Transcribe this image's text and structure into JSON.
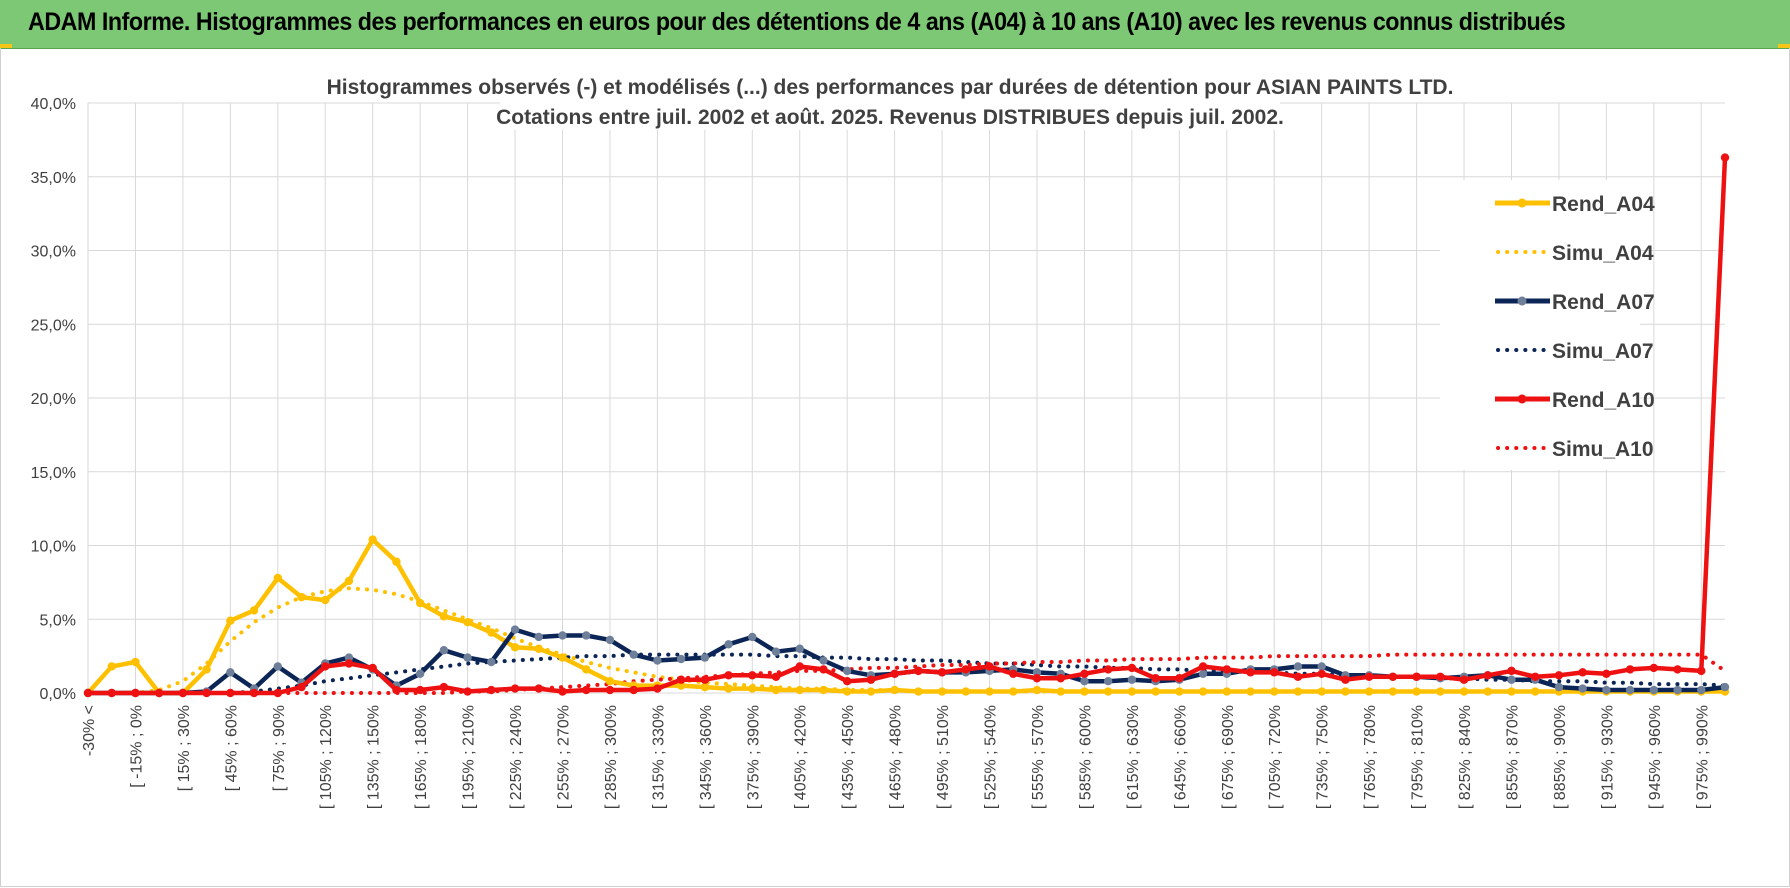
{
  "header": {
    "title": "ADAM Informe. Histogrammes des performances en euros pour des détentions de 4 ans (A04) à 10 ans (A10) avec les revenus connus distribués"
  },
  "colors": {
    "banner": "#7dc874",
    "A04": "#ffc000",
    "A07": "#0c2557",
    "A07_marker": "#6d7f99",
    "A10": "#ee1111",
    "grid": "#d9d9d9"
  },
  "chart_data": {
    "type": "line",
    "title_lines": [
      "Histogrammes observés (-) et modélisés (...) des performances par durées de détention pour ASIAN PAINTS LTD.",
      "Cotations entre juil. 2002 et août. 2025. Revenus DISTRIBUES depuis juil. 2002."
    ],
    "y_ticks": [
      "0,0%",
      "5,0%",
      "10,0%",
      "15,0%",
      "20,0%",
      "25,0%",
      "30,0%",
      "35,0%",
      "40,0%"
    ],
    "ylim": [
      0,
      40
    ],
    "y_unit": "%",
    "grid": true,
    "legend_position": "right",
    "x_tick_labels": [
      "-30% <",
      "[ -15% ; 0%",
      "[ 15% ; 30%",
      "[ 45% ; 60%",
      "[ 75% ; 90%",
      "[ 105% ; 120%",
      "[ 135% ; 150%",
      "[ 165% ; 180%",
      "[ 195% ; 210%",
      "[ 225% ; 240%",
      "[ 255% ; 270%",
      "[ 285% ; 300%",
      "[ 315% ; 330%",
      "[ 345% ; 360%",
      "[ 375% ; 390%",
      "[ 405% ; 420%",
      "[ 435% ; 450%",
      "[ 465% ; 480%",
      "[ 495% ; 510%",
      "[ 525% ; 540%",
      "[ 555% ; 570%",
      "[ 585% ; 600%",
      "[ 615% ; 630%",
      "[ 645% ; 660%",
      "[ 675% ; 690%",
      "[ 705% ; 720%",
      "[ 735% ; 750%",
      "[ 765% ; 780%",
      "[ 795% ; 810%",
      "[ 825% ; 840%",
      "[ 855% ; 870%",
      "[ 885% ; 900%",
      "[ 915% ; 930%",
      "[ 945% ; 960%",
      "[ 975% ; 990%"
    ],
    "series": [
      {
        "name": "Rend_A04",
        "style": "solid",
        "color": "#ffc000",
        "values": [
          0,
          1.8,
          2.1,
          0,
          0,
          1.6,
          4.9,
          5.6,
          7.8,
          6.5,
          6.3,
          7.6,
          10.4,
          8.9,
          6.1,
          5.2,
          4.8,
          4.1,
          3.1,
          3.0,
          2.4,
          1.6,
          0.8,
          0.5,
          0.5,
          0.5,
          0.4,
          0.3,
          0.3,
          0.2,
          0.2,
          0.2,
          0.1,
          0.1,
          0.2,
          0.1,
          0.1,
          0.1,
          0.1,
          0.1,
          0.2,
          0.1,
          0.1,
          0.1,
          0.1,
          0.1,
          0.1,
          0.1,
          0.1,
          0.1,
          0.1,
          0.1,
          0.1,
          0.1,
          0.1,
          0.1,
          0.1,
          0.1,
          0.1,
          0.1,
          0.1,
          0.1,
          0.1,
          0.1,
          0.1,
          0.1,
          0.1,
          0.1,
          0.1,
          0.1
        ]
      },
      {
        "name": "Simu_A04",
        "style": "dotted",
        "color": "#ffc000",
        "values": [
          0,
          0,
          0,
          0.2,
          0.8,
          2.0,
          3.5,
          4.8,
          5.8,
          6.5,
          6.9,
          7.1,
          7.0,
          6.7,
          6.2,
          5.6,
          5.0,
          4.4,
          3.7,
          3.1,
          2.6,
          2.1,
          1.7,
          1.4,
          1.1,
          0.9,
          0.7,
          0.6,
          0.5,
          0.4,
          0.3,
          0.3,
          0.2,
          0.2,
          0.2,
          0.1,
          0.1,
          0.1,
          0.1,
          0.1,
          0.1,
          0.1,
          0.1,
          0.1,
          0.1,
          0.1,
          0.1,
          0.1,
          0.1,
          0.1,
          0.1,
          0.1,
          0.1,
          0.1,
          0.1,
          0.1,
          0.1,
          0.1,
          0.1,
          0.1,
          0.1,
          0.1,
          0.1,
          0.1,
          0.1,
          0.1,
          0.1,
          0.1,
          0.1,
          0.1
        ]
      },
      {
        "name": "Rend_A07",
        "style": "solid",
        "color": "#0c2557",
        "values": [
          0,
          0,
          0,
          0,
          0,
          0.1,
          1.4,
          0.3,
          1.8,
          0.7,
          2.0,
          2.4,
          1.6,
          0.5,
          1.3,
          2.9,
          2.4,
          2.1,
          4.3,
          3.8,
          3.9,
          3.9,
          3.6,
          2.6,
          2.2,
          2.3,
          2.4,
          3.3,
          3.8,
          2.8,
          3.0,
          2.2,
          1.5,
          1.2,
          1.3,
          1.5,
          1.4,
          1.4,
          1.5,
          1.6,
          1.4,
          1.3,
          0.8,
          0.8,
          0.9,
          0.8,
          0.9,
          1.3,
          1.3,
          1.6,
          1.6,
          1.8,
          1.8,
          1.2,
          1.2,
          1.1,
          1.1,
          1.0,
          1.1,
          1.2,
          0.9,
          0.9,
          0.4,
          0.3,
          0.2,
          0.2,
          0.2,
          0.2,
          0.2,
          0.4
        ]
      },
      {
        "name": "Simu_A07",
        "style": "dotted",
        "color": "#0c2557",
        "values": [
          0,
          0,
          0,
          0,
          0,
          0,
          0,
          0.1,
          0.3,
          0.5,
          0.8,
          1.0,
          1.2,
          1.4,
          1.6,
          1.8,
          2.0,
          2.1,
          2.2,
          2.3,
          2.4,
          2.5,
          2.5,
          2.6,
          2.6,
          2.6,
          2.6,
          2.6,
          2.6,
          2.5,
          2.5,
          2.4,
          2.4,
          2.3,
          2.3,
          2.2,
          2.2,
          2.1,
          2.0,
          2.0,
          1.9,
          1.8,
          1.8,
          1.7,
          1.7,
          1.6,
          1.6,
          1.5,
          1.5,
          1.4,
          1.4,
          1.3,
          1.3,
          1.2,
          1.2,
          1.1,
          1.1,
          1.0,
          1.0,
          0.9,
          0.9,
          0.8,
          0.8,
          0.8,
          0.7,
          0.7,
          0.6,
          0.6,
          0.6,
          0.5
        ]
      },
      {
        "name": "Rend_A10",
        "style": "solid",
        "color": "#ee1111",
        "values": [
          0,
          0,
          0,
          0,
          0,
          0,
          0,
          0,
          0,
          0.4,
          1.8,
          2.0,
          1.7,
          0.2,
          0.2,
          0.4,
          0.1,
          0.2,
          0.3,
          0.3,
          0.1,
          0.2,
          0.2,
          0.2,
          0.3,
          0.9,
          0.9,
          1.2,
          1.2,
          1.1,
          1.8,
          1.6,
          0.8,
          0.9,
          1.3,
          1.5,
          1.4,
          1.6,
          1.8,
          1.3,
          1.0,
          1.0,
          1.3,
          1.6,
          1.7,
          1.0,
          1.0,
          1.8,
          1.6,
          1.4,
          1.4,
          1.1,
          1.3,
          0.9,
          1.1,
          1.1,
          1.1,
          1.1,
          0.9,
          1.2,
          1.5,
          1.1,
          1.2,
          1.4,
          1.3,
          1.6,
          1.7,
          1.6,
          1.5,
          36.3
        ]
      },
      {
        "name": "Simu_A10",
        "style": "dotted",
        "color": "#ee1111",
        "values": [
          0,
          0,
          0,
          0,
          0,
          0,
          0,
          0,
          0,
          0,
          0,
          0,
          0,
          0,
          0,
          0,
          0.1,
          0.1,
          0.2,
          0.3,
          0.4,
          0.5,
          0.6,
          0.8,
          0.9,
          1.0,
          1.1,
          1.2,
          1.3,
          1.4,
          1.5,
          1.5,
          1.6,
          1.7,
          1.7,
          1.8,
          1.9,
          1.9,
          2.0,
          2.0,
          2.1,
          2.1,
          2.2,
          2.2,
          2.3,
          2.3,
          2.3,
          2.4,
          2.4,
          2.4,
          2.5,
          2.5,
          2.5,
          2.5,
          2.5,
          2.6,
          2.6,
          2.6,
          2.6,
          2.6,
          2.6,
          2.6,
          2.6,
          2.6,
          2.6,
          2.6,
          2.6,
          2.6,
          2.6,
          1.5
        ]
      }
    ]
  }
}
